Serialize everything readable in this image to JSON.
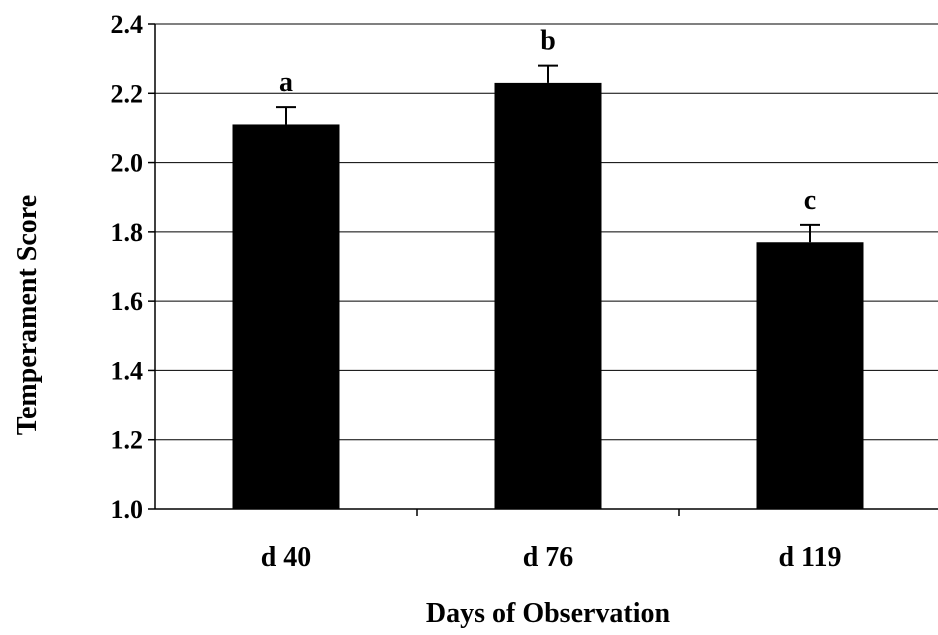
{
  "chart_data": {
    "type": "bar",
    "title": "",
    "xlabel": "Days of Observation",
    "ylabel": "Temperament Score",
    "ylim": [
      1.0,
      2.4
    ],
    "yticks": [
      "1.0",
      "1.2",
      "1.4",
      "1.6",
      "1.8",
      "2.0",
      "2.2",
      "2.4"
    ],
    "grid": "horizontal",
    "categories": [
      "d 40",
      "d 76",
      "d 119"
    ],
    "values": [
      2.11,
      2.23,
      1.77
    ],
    "error_bars": [
      0.05,
      0.05,
      0.05
    ],
    "significance_labels": [
      "a",
      "b",
      "c"
    ],
    "colors": {
      "bar": "#000000",
      "grid": "#000000",
      "background": "#ffffff"
    }
  }
}
